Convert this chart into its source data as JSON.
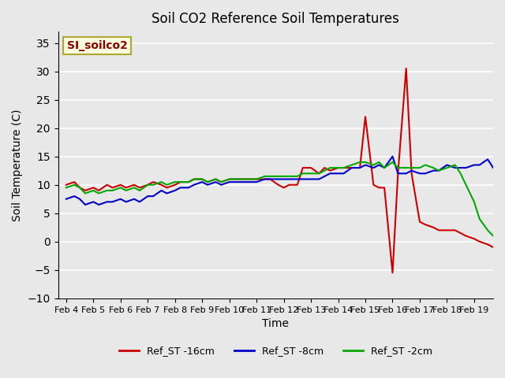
{
  "title": "Soil CO2 Reference Soil Temperatures",
  "xlabel": "Time",
  "ylabel": "Soil Temperature (C)",
  "ylim": [
    -10,
    37
  ],
  "yticks": [
    -10,
    -5,
    0,
    5,
    10,
    15,
    20,
    25,
    30,
    35
  ],
  "label_box": "SI_soilco2",
  "colors": {
    "red": "#cc0000",
    "blue": "#0000cc",
    "green": "#00aa00"
  },
  "x_labels": [
    "Feb 4",
    "Feb 5",
    "Feb 6",
    "Feb 7",
    "Feb 8",
    "Feb 9",
    "Feb 10",
    "Feb 11",
    "Feb 12",
    "Feb 13",
    "Feb 14",
    "Feb 15",
    "Feb 16",
    "Feb 17",
    "Feb 18",
    "Feb 19"
  ],
  "red_x": [
    0,
    0.3,
    0.5,
    0.7,
    1,
    1.2,
    1.5,
    1.7,
    2,
    2.2,
    2.5,
    2.7,
    3,
    3.2,
    3.5,
    3.7,
    4,
    4.2,
    4.5,
    4.7,
    5,
    5.2,
    5.5,
    5.7,
    6,
    6.2,
    6.5,
    6.7,
    7,
    7.3,
    7.5,
    7.8,
    8.0,
    8.2,
    8.5,
    8.7,
    9.0,
    9.3,
    9.5,
    9.7,
    10.0,
    10.2,
    10.5,
    10.8,
    11.0,
    11.3,
    11.5,
    11.7,
    12.0,
    12.2,
    12.5,
    12.7,
    13.0,
    13.2,
    13.5,
    13.7,
    14.0,
    14.3,
    14.5,
    14.7,
    15.0,
    15.2,
    15.5,
    15.7
  ],
  "red_y": [
    10,
    10.5,
    9.5,
    9,
    9.5,
    9,
    10,
    9.5,
    10,
    9.5,
    10,
    9.5,
    10,
    10.5,
    10,
    9.5,
    10,
    10.5,
    10.5,
    11,
    11,
    10.5,
    11,
    10.5,
    11,
    11,
    11,
    11,
    11,
    11,
    11,
    10,
    9.5,
    10,
    10,
    13,
    13,
    12,
    13,
    12.5,
    13,
    13,
    13,
    13,
    22,
    10,
    9.5,
    9.5,
    -5.5,
    12,
    30.5,
    12,
    3.5,
    3,
    2.5,
    2,
    2,
    2,
    1.5,
    1,
    0.5,
    0,
    -0.5,
    -1
  ],
  "blue_x": [
    0,
    0.3,
    0.5,
    0.7,
    1,
    1.2,
    1.5,
    1.7,
    2,
    2.2,
    2.5,
    2.7,
    3,
    3.2,
    3.5,
    3.7,
    4,
    4.2,
    4.5,
    4.7,
    5,
    5.2,
    5.5,
    5.7,
    6,
    6.2,
    6.5,
    6.7,
    7,
    7.3,
    7.5,
    7.8,
    8.0,
    8.2,
    8.5,
    8.7,
    9.0,
    9.3,
    9.5,
    9.7,
    10.0,
    10.2,
    10.5,
    10.8,
    11.0,
    11.3,
    11.5,
    11.7,
    12.0,
    12.2,
    12.5,
    12.7,
    13.0,
    13.2,
    13.5,
    13.7,
    14.0,
    14.3,
    14.5,
    14.7,
    15.0,
    15.2,
    15.5,
    15.7
  ],
  "blue_y": [
    7.5,
    8,
    7.5,
    6.5,
    7,
    6.5,
    7,
    7,
    7.5,
    7,
    7.5,
    7,
    8,
    8,
    9,
    8.5,
    9,
    9.5,
    9.5,
    10,
    10.5,
    10,
    10.5,
    10,
    10.5,
    10.5,
    10.5,
    10.5,
    10.5,
    11,
    11,
    11,
    11,
    11,
    11,
    11,
    11,
    11,
    11.5,
    12,
    12,
    12,
    13,
    13,
    13.5,
    13,
    13.5,
    13,
    15,
    12,
    12,
    12.5,
    12,
    12,
    12.5,
    12.5,
    13.5,
    13,
    13,
    13,
    13.5,
    13.5,
    14.5,
    13
  ],
  "green_x": [
    0,
    0.3,
    0.5,
    0.7,
    1,
    1.2,
    1.5,
    1.7,
    2,
    2.2,
    2.5,
    2.7,
    3,
    3.2,
    3.5,
    3.7,
    4,
    4.2,
    4.5,
    4.7,
    5,
    5.2,
    5.5,
    5.7,
    6,
    6.2,
    6.5,
    6.7,
    7,
    7.3,
    7.5,
    7.8,
    8.0,
    8.2,
    8.5,
    8.7,
    9.0,
    9.3,
    9.5,
    9.7,
    10.0,
    10.2,
    10.5,
    10.8,
    11.0,
    11.3,
    11.5,
    11.7,
    12.0,
    12.2,
    12.5,
    12.7,
    13.0,
    13.2,
    13.5,
    13.7,
    14.0,
    14.3,
    14.5,
    14.7,
    15.0,
    15.2,
    15.5,
    15.7
  ],
  "green_y": [
    9.5,
    10,
    9.5,
    8.5,
    9,
    8.5,
    9,
    9,
    9.5,
    9,
    9.5,
    9,
    10,
    10,
    10.5,
    10,
    10.5,
    10.5,
    10.5,
    11,
    11,
    10.5,
    11,
    10.5,
    11,
    11,
    11,
    11,
    11,
    11.5,
    11.5,
    11.5,
    11.5,
    11.5,
    11.5,
    12,
    12,
    12,
    12.5,
    13,
    13,
    13,
    13.5,
    14,
    14,
    13.5,
    14,
    13,
    14,
    13,
    13,
    13,
    13,
    13.5,
    13,
    12.5,
    13,
    13.5,
    12,
    10,
    7,
    4,
    2,
    1
  ]
}
